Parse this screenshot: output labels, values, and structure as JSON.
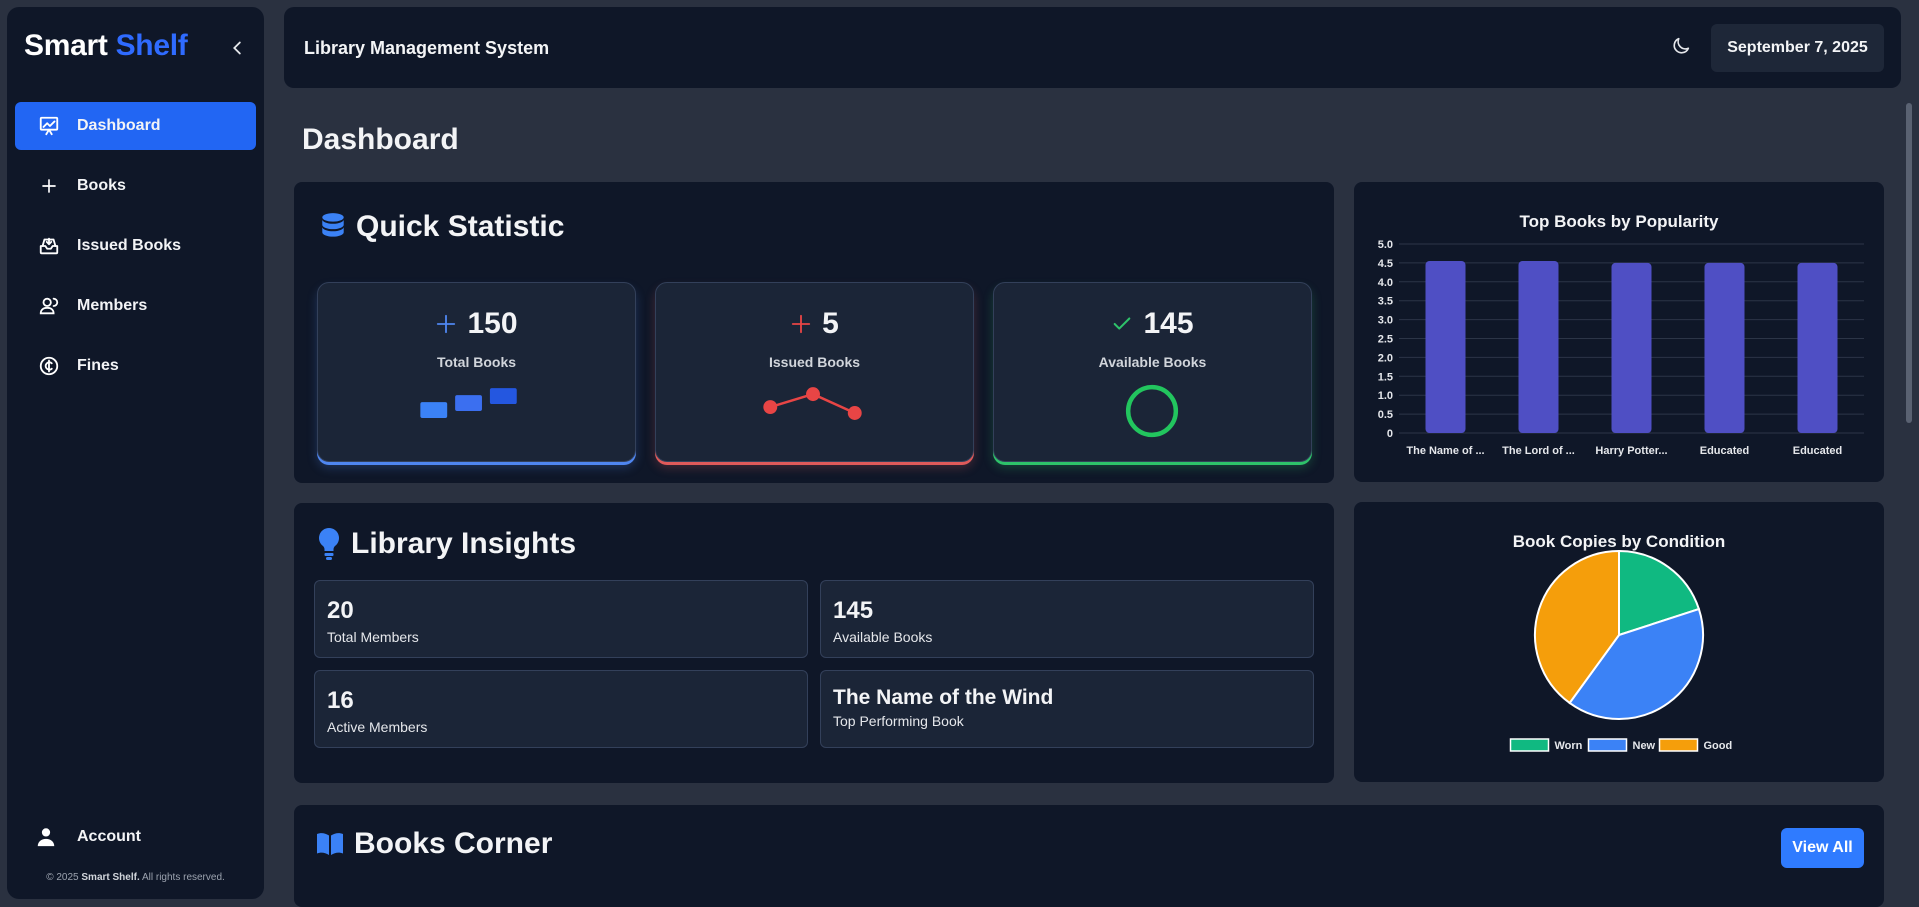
{
  "brand": {
    "part1": "Smart",
    "part2": "Shelf"
  },
  "sidebar": {
    "items": [
      {
        "label": "Dashboard",
        "icon": "presentation-chart-icon",
        "active": true
      },
      {
        "label": "Books",
        "icon": "plus-icon",
        "active": false
      },
      {
        "label": "Issued Books",
        "icon": "inbox-arrow-icon",
        "active": false
      },
      {
        "label": "Members",
        "icon": "users-icon",
        "active": false
      },
      {
        "label": "Fines",
        "icon": "currency-icon",
        "active": false
      }
    ],
    "account_label": "Account",
    "copyright_prefix": "© 2025",
    "copyright_brand": "Smart Shelf.",
    "copyright_suffix": "All rights reserved."
  },
  "header": {
    "title": "Library Management System",
    "date": "September 7, 2025"
  },
  "page": {
    "title": "Dashboard"
  },
  "quick_stats": {
    "title": "Quick Statistic",
    "cards": [
      {
        "value": "150",
        "label": "Total Books",
        "accent": "#4f86f0"
      },
      {
        "value": "5",
        "label": "Issued Books",
        "accent": "#e84545"
      },
      {
        "value": "145",
        "label": "Available Books",
        "accent": "#2ec26a"
      }
    ]
  },
  "insights": {
    "title": "Library Insights",
    "items": [
      {
        "value": "20",
        "label": "Total Members"
      },
      {
        "value": "145",
        "label": "Available Books"
      },
      {
        "value": "16",
        "label": "Active Members"
      },
      {
        "value": "The Name of the Wind",
        "label": "Top Performing Book"
      }
    ]
  },
  "books_corner": {
    "title": "Books Corner",
    "view_all": "View All"
  },
  "chart_data": [
    {
      "type": "bar",
      "title": "Top Books by Popularity",
      "categories": [
        "The Name of ...",
        "The Lord of ...",
        "Harry Potter...",
        "Educated",
        "Educated"
      ],
      "values": [
        4.55,
        4.55,
        4.5,
        4.5,
        4.5
      ],
      "ylim": [
        0,
        5.0
      ],
      "yticks": [
        "0",
        "0.5",
        "1.0",
        "1.5",
        "2.0",
        "2.5",
        "3.0",
        "3.5",
        "4.0",
        "4.5",
        "5.0"
      ],
      "color": "#4f4fc4",
      "grid": true
    },
    {
      "type": "pie",
      "title": "Book Copies by Condition",
      "labels": [
        "Worn",
        "New",
        "Good"
      ],
      "values": [
        20,
        40,
        40
      ],
      "colors": [
        "#10b981",
        "#3b82f6",
        "#f59e0b"
      ],
      "legend": "bottom"
    }
  ]
}
